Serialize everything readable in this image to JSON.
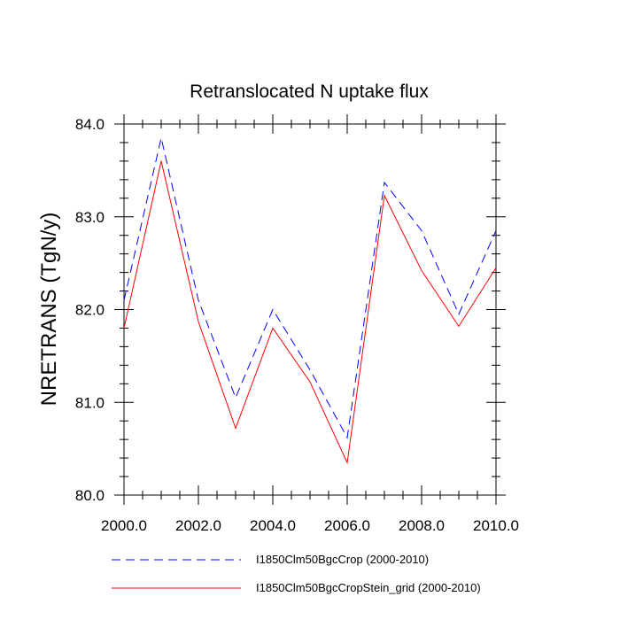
{
  "chart_data": {
    "type": "line",
    "title": "Retranslocated N uptake flux",
    "xlabel": "",
    "ylabel": "NRETRANS  (TgN/y)",
    "x": [
      2000,
      2001,
      2002,
      2003,
      2004,
      2005,
      2006,
      2007,
      2008,
      2009,
      2010
    ],
    "xlim": [
      2000,
      2010
    ],
    "ylim": [
      80,
      84
    ],
    "xticks": [
      2000,
      2002,
      2004,
      2006,
      2008,
      2010
    ],
    "xtick_labels": [
      "2000.0",
      "2002.0",
      "2004.0",
      "2006.0",
      "2008.0",
      "2010.0"
    ],
    "yticks": [
      80,
      81,
      82,
      83,
      84
    ],
    "ytick_labels": [
      "80.0",
      "81.0",
      "82.0",
      "83.0",
      "84.0"
    ],
    "grid": false,
    "legend_position": "bottom",
    "series": [
      {
        "name": "I1850Clm50BgcCrop (2000-2010)",
        "color": "#0000ff",
        "style": "dashed",
        "values": [
          82.1,
          83.85,
          82.1,
          81.05,
          82.0,
          81.35,
          80.62,
          83.37,
          82.85,
          81.95,
          82.85
        ]
      },
      {
        "name": "I1850Clm50BgcCropStein_grid (2000-2010)",
        "color": "#ff0000",
        "style": "solid",
        "values": [
          81.8,
          83.6,
          81.87,
          80.72,
          81.8,
          81.22,
          80.35,
          83.23,
          82.42,
          81.82,
          82.45
        ]
      }
    ]
  }
}
